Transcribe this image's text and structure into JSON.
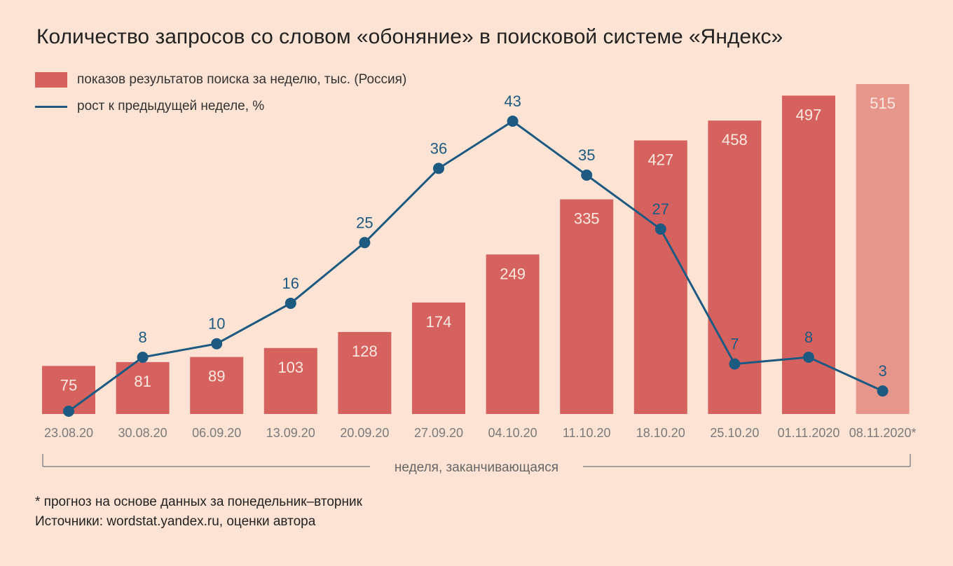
{
  "title": "Количество запросов со словом «обоняние» в поисковой системе «Яндекс»",
  "legend": {
    "bars": "показов результатов поиска за неделю, тыс. (Россия)",
    "line": "рост к предыдущей неделе, %"
  },
  "colors": {
    "background": "#fde3d4",
    "bar": "#d6625f",
    "bar_forecast": "#e6968b",
    "line": "#1d5a82",
    "bar_label": "#fde9df",
    "axis_text": "#7a7a7a"
  },
  "chart_data": {
    "type": "bar",
    "categories": [
      "23.08.20",
      "30.08.20",
      "06.09.20",
      "13.09.20",
      "20.09.20",
      "27.09.20",
      "04.10.20",
      "11.10.20",
      "18.10.20",
      "25.10.20",
      "01.11.2020",
      "08.11.2020*"
    ],
    "series": [
      {
        "name": "показов результатов поиска за неделю, тыс. (Россия)",
        "type": "bar",
        "values": [
          75,
          81,
          89,
          103,
          128,
          174,
          249,
          335,
          427,
          458,
          497,
          515
        ],
        "forecast_index": 11
      },
      {
        "name": "рост к предыдущей неделе, %",
        "type": "line",
        "values": [
          null,
          8,
          10,
          16,
          25,
          36,
          43,
          35,
          27,
          7,
          8,
          3
        ],
        "value_labels": [
          "",
          "8",
          "10",
          "16",
          "25",
          "36",
          "43",
          "35",
          "27",
          "7",
          "8",
          "3"
        ]
      }
    ],
    "bar_ylim": [
      0,
      515
    ],
    "line_ylim": [
      0,
      43
    ],
    "xlabel": "неделя, заканчивающаяся",
    "grid": false,
    "legend_position": "top-left"
  },
  "footnote": "* прогноз на основе данных за понедельник–вторник",
  "source": "Источники: wordstat.yandex.ru, оценки автора"
}
